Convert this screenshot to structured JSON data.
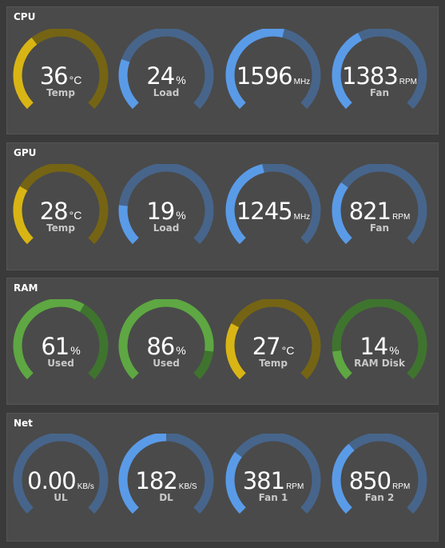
{
  "colors": {
    "yellow_fg": "#d8b514",
    "yellow_bg": "#756414",
    "blue_fg": "#5a9be8",
    "blue_bg": "#47658b",
    "green_fg": "#5ea743",
    "green_bg": "#3f742f"
  },
  "panels": [
    {
      "title": "CPU",
      "gauges": [
        {
          "value": "36",
          "unit": "°C",
          "label": "Temp",
          "fill": 0.36,
          "color": "yellow",
          "small_unit": false
        },
        {
          "value": "24",
          "unit": "%",
          "label": "Load",
          "fill": 0.24,
          "color": "blue",
          "small_unit": false
        },
        {
          "value": "1596",
          "unit": "MHz",
          "label": "",
          "fill": 0.55,
          "color": "blue",
          "small_unit": true
        },
        {
          "value": "1383",
          "unit": "RPM",
          "label": "Fan",
          "fill": 0.4,
          "color": "blue",
          "small_unit": true
        }
      ]
    },
    {
      "title": "GPU",
      "gauges": [
        {
          "value": "28",
          "unit": "°C",
          "label": "Temp",
          "fill": 0.28,
          "color": "yellow",
          "small_unit": false
        },
        {
          "value": "19",
          "unit": "%",
          "label": "Load",
          "fill": 0.19,
          "color": "blue",
          "small_unit": false
        },
        {
          "value": "1245",
          "unit": "MHz",
          "label": "",
          "fill": 0.45,
          "color": "blue",
          "small_unit": true
        },
        {
          "value": "821",
          "unit": "RPM",
          "label": "Fan",
          "fill": 0.3,
          "color": "blue",
          "small_unit": true
        }
      ]
    },
    {
      "title": "RAM",
      "gauges": [
        {
          "value": "61",
          "unit": "%",
          "label": "Used",
          "fill": 0.61,
          "color": "green",
          "small_unit": false
        },
        {
          "value": "86",
          "unit": "%",
          "label": "Used",
          "fill": 0.86,
          "color": "green",
          "small_unit": false
        },
        {
          "value": "27",
          "unit": "°C",
          "label": "Temp",
          "fill": 0.27,
          "color": "yellow",
          "small_unit": false
        },
        {
          "value": "14",
          "unit": "%",
          "label": "RAM Disk",
          "fill": 0.14,
          "color": "green",
          "small_unit": false
        }
      ]
    },
    {
      "title": "Net",
      "gauges": [
        {
          "value": "0.00",
          "unit": "KB/s",
          "label": "UL",
          "fill": 0.0,
          "color": "blue",
          "small_unit": true
        },
        {
          "value": "182",
          "unit": "KB/S",
          "label": "DL",
          "fill": 0.5,
          "color": "blue",
          "small_unit": true
        },
        {
          "value": "381",
          "unit": "RPM",
          "label": "Fan 1",
          "fill": 0.3,
          "color": "blue",
          "small_unit": true
        },
        {
          "value": "850",
          "unit": "RPM",
          "label": "Fan 2",
          "fill": 0.35,
          "color": "blue",
          "small_unit": true
        }
      ]
    }
  ]
}
